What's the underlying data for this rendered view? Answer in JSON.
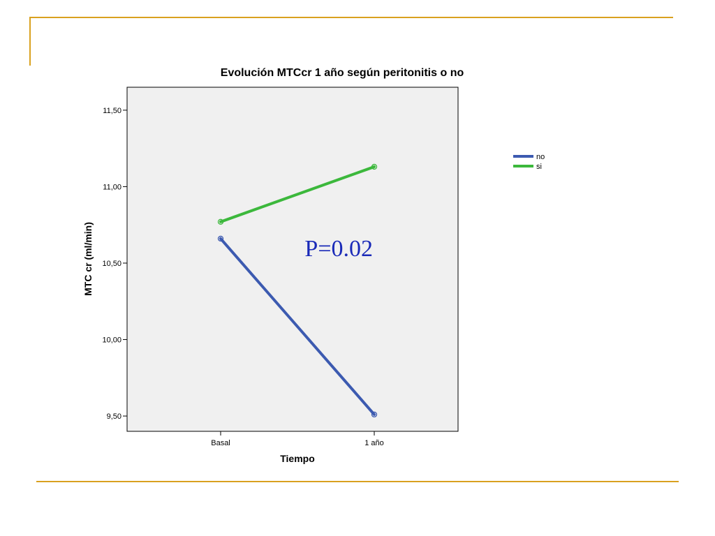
{
  "chart_data": {
    "type": "line",
    "title": "Evolución MTCcr 1 año según peritonitis o no",
    "xlabel": "Tiempo",
    "ylabel": "MTC cr (ml/min)",
    "categories": [
      "Basal",
      "1 año"
    ],
    "ylim": [
      9.4,
      11.65
    ],
    "yticks": [
      9.5,
      10.0,
      10.5,
      11.0,
      11.5
    ],
    "ytick_labels": [
      "9,50",
      "10,00",
      "10,50",
      "11,00",
      "11,50"
    ],
    "grid": false,
    "legend_placement": "right",
    "series": [
      {
        "name": "no",
        "color": "#3c5ab0",
        "values": [
          10.66,
          9.51
        ]
      },
      {
        "name": "si",
        "color": "#3cb83c",
        "values": [
          10.77,
          11.13
        ]
      }
    ],
    "annotations": [
      {
        "text": "P=0.02",
        "category": "1 año",
        "y": 10.6,
        "color": "#1a2ab8"
      }
    ],
    "plot_background": "#f0f0f0"
  },
  "decoration_color": "#d9a11f"
}
